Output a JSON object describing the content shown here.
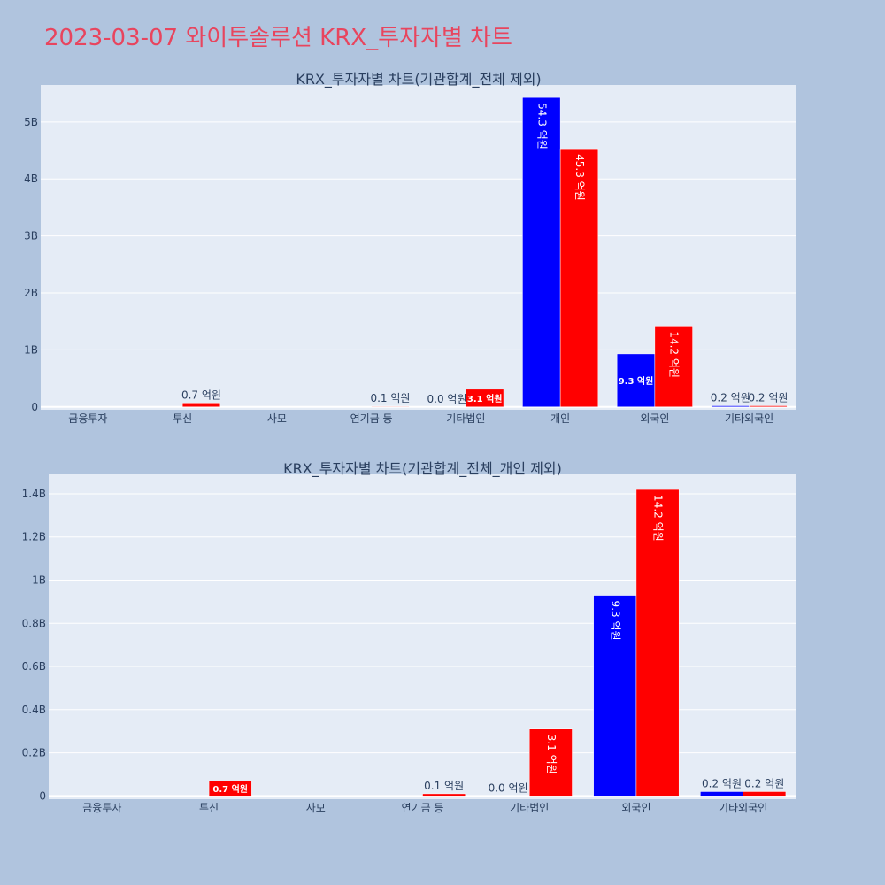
{
  "title": "2023-03-07 와이투솔루션 KRX_투자자별 차트",
  "colors": {
    "background": "#b0c4de",
    "plot_bg": "#e5ecf6",
    "buy": "#0000ff",
    "sell": "#ff0000",
    "title": "#e8455e",
    "text": "#2a3f5f"
  },
  "chart_data": [
    {
      "type": "bar",
      "title": "KRX_투자자별 차트(기관합계_전체 제외)",
      "categories": [
        "금융투자",
        "투신",
        "사모",
        "연기금 등",
        "기타법인",
        "개인",
        "외국인",
        "기타외국인"
      ],
      "series": [
        {
          "values": [
            0,
            0,
            0,
            0,
            0,
            5430000000,
            930000000,
            20000000
          ],
          "labels": [
            "",
            "",
            "",
            "",
            "0.0 억원",
            "54.3 억원",
            "9.3 억원",
            "0.2 억원"
          ]
        },
        {
          "values": [
            0,
            70000000,
            0,
            10000000,
            310000000,
            4530000000,
            1420000000,
            20000000
          ],
          "labels": [
            "",
            "0.7 억원",
            "",
            "0.1 억원",
            "3.1 억원",
            "45.3 억원",
            "14.2 억원",
            "0.2 억원"
          ]
        }
      ],
      "yticks": [
        0,
        1000000000,
        2000000000,
        3000000000,
        4000000000,
        5000000000
      ],
      "ytick_labels": [
        "0",
        "1B",
        "2B",
        "3B",
        "4B",
        "5B"
      ],
      "ylim": [
        -50000000,
        5650000000
      ],
      "grid": true
    },
    {
      "type": "bar",
      "title": "KRX_투자자별 차트(기관합계_전체_개인 제외)",
      "categories": [
        "금융투자",
        "투신",
        "사모",
        "연기금 등",
        "기타법인",
        "외국인",
        "기타외국인"
      ],
      "series": [
        {
          "values": [
            0,
            0,
            0,
            0,
            0,
            930000000,
            20000000
          ],
          "labels": [
            "",
            "",
            "",
            "",
            "0.0 억원",
            "9.3 억원",
            "0.2 억원"
          ]
        },
        {
          "values": [
            0,
            70000000,
            0,
            10000000,
            310000000,
            1420000000,
            20000000
          ],
          "labels": [
            "",
            "0.7 억원",
            "",
            "0.1 억원",
            "3.1 억원",
            "14.2 억원",
            "0.2 억원"
          ]
        }
      ],
      "yticks": [
        0,
        200000000,
        400000000,
        600000000,
        800000000,
        1000000000,
        1200000000,
        1400000000
      ],
      "ytick_labels": [
        "0",
        "0.2B",
        "0.4B",
        "0.6B",
        "0.8B",
        "1B",
        "1.2B",
        "1.4B"
      ],
      "ylim": [
        -15000000,
        1490000000
      ],
      "grid": true
    }
  ]
}
